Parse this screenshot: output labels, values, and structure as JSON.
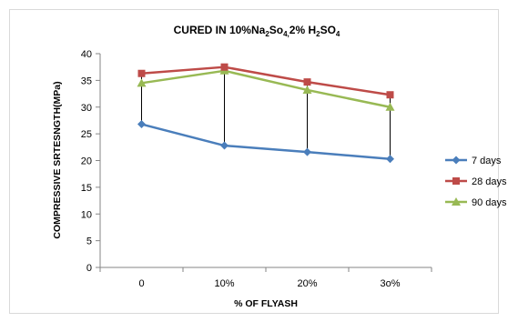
{
  "chart_data": {
    "type": "line",
    "title": {
      "parts": [
        {
          "text": "CURED IN 10%Na",
          "sub": false
        },
        {
          "text": "2",
          "sub": true
        },
        {
          "text": "So",
          "sub": false
        },
        {
          "text": "4,",
          "sub": true
        },
        {
          "text": "2% H",
          "sub": false
        },
        {
          "text": "2",
          "sub": true
        },
        {
          "text": "SO",
          "sub": false
        },
        {
          "text": "4",
          "sub": true
        }
      ]
    },
    "xlabel": "% OF FLYASH",
    "ylabel": "COMPRESSIVE SRTESNGTH(MPa)",
    "categories": [
      "0",
      "10%",
      "20%",
      "3o%"
    ],
    "ylim": [
      0,
      40
    ],
    "yticks": [
      0,
      5,
      10,
      15,
      20,
      25,
      30,
      35,
      40
    ],
    "grid": false,
    "legend_position": "right",
    "series": [
      {
        "name": "7 days",
        "values": [
          26.8,
          22.8,
          21.6,
          20.3
        ],
        "color": "#4a7ebb",
        "marker": "diamond"
      },
      {
        "name": "28 days",
        "values": [
          36.3,
          37.5,
          34.7,
          32.3
        ],
        "color": "#be4b48",
        "marker": "square"
      },
      {
        "name": "90 days",
        "values": [
          34.5,
          36.8,
          33.2,
          30.0
        ],
        "color": "#98b954",
        "marker": "triangle"
      }
    ],
    "drop_lines": true
  }
}
